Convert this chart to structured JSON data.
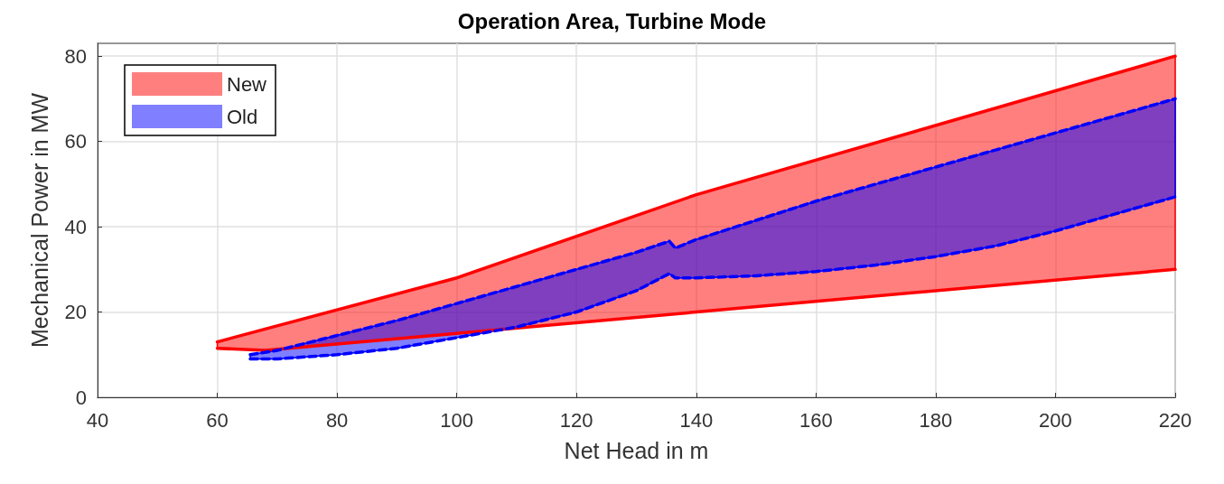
{
  "chart_data": {
    "type": "area",
    "title": "Operation Area, Turbine Mode",
    "xlabel": "Net Head in m",
    "ylabel": "Mechanical Power in MW",
    "xlim": [
      40,
      220
    ],
    "xticks": [
      40,
      60,
      80,
      100,
      120,
      140,
      160,
      180,
      200,
      220
    ],
    "ylim": [
      0,
      83
    ],
    "yticks": [
      0,
      20,
      40,
      60,
      80
    ],
    "grid": true,
    "legend": "top left",
    "series": [
      {
        "name": "New",
        "color": "#ff0000",
        "line_style": "solid",
        "x": [
          60,
          68,
          100,
          140,
          220
        ],
        "values": [
          13,
          16,
          28,
          47.5,
          80
        ]
      },
      {
        "type": "line",
        "color": "#ff0000",
        "line_style": "solid",
        "x": [
          60,
          68,
          100,
          140,
          220
        ],
        "values": [
          11.5,
          11,
          15,
          20,
          30
        ]
      },
      {
        "name": "Old",
        "color": "#0000ff",
        "line_style": "dashed",
        "x": [
          65.5,
          70,
          80,
          90,
          100,
          110,
          120,
          130,
          135.5,
          136.5,
          140,
          150,
          160,
          170,
          180,
          190,
          200,
          210,
          220
        ],
        "values": [
          10,
          11,
          14.5,
          18,
          22,
          26,
          30,
          34,
          36.6,
          35,
          37,
          41.5,
          46,
          50,
          54,
          58,
          62,
          66,
          70
        ]
      },
      {
        "type": "line",
        "color": "#0000ff",
        "line_style": "dashed",
        "x": [
          65.5,
          70,
          80,
          90,
          100,
          110,
          120,
          130,
          135.5,
          136.5,
          140,
          150,
          160,
          170,
          180,
          190,
          200,
          210,
          220
        ],
        "values": [
          9,
          9,
          10,
          11.5,
          14,
          16.5,
          20,
          25,
          29,
          28,
          28,
          28.5,
          29.5,
          31,
          33,
          35.5,
          39,
          43,
          47
        ]
      }
    ]
  }
}
